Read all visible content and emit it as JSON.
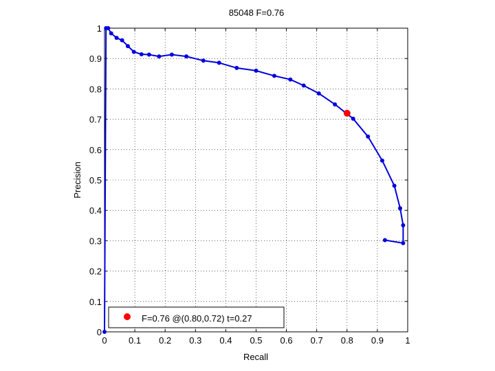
{
  "chart_data": {
    "type": "line",
    "title": "85048 F=0.76",
    "xlabel": "Recall",
    "ylabel": "Precision",
    "xlim": [
      0,
      1
    ],
    "ylim": [
      0,
      1
    ],
    "grid": true,
    "legend_position": "bottom-left",
    "xticks": [
      "0",
      "0.1",
      "0.2",
      "0.3",
      "0.4",
      "0.5",
      "0.6",
      "0.7",
      "0.8",
      "0.9",
      "1"
    ],
    "yticks": [
      "0",
      "0.1",
      "0.2",
      "0.3",
      "0.4",
      "0.5",
      "0.6",
      "0.7",
      "0.8",
      "0.9",
      "1"
    ],
    "series": [
      {
        "color": "#0000dd",
        "points": [
          [
            0.0,
            0.0
          ],
          [
            0.005,
            1.0
          ],
          [
            0.012,
            1.0
          ],
          [
            0.022,
            0.983
          ],
          [
            0.04,
            0.968
          ],
          [
            0.058,
            0.96
          ],
          [
            0.077,
            0.941
          ],
          [
            0.097,
            0.922
          ],
          [
            0.122,
            0.914
          ],
          [
            0.147,
            0.913
          ],
          [
            0.18,
            0.907
          ],
          [
            0.222,
            0.913
          ],
          [
            0.27,
            0.907
          ],
          [
            0.326,
            0.893
          ],
          [
            0.378,
            0.886
          ],
          [
            0.436,
            0.869
          ],
          [
            0.5,
            0.86
          ],
          [
            0.56,
            0.843
          ],
          [
            0.613,
            0.831
          ],
          [
            0.657,
            0.811
          ],
          [
            0.707,
            0.785
          ],
          [
            0.76,
            0.749
          ],
          [
            0.82,
            0.702
          ],
          [
            0.869,
            0.643
          ],
          [
            0.916,
            0.564
          ],
          [
            0.956,
            0.481
          ],
          [
            0.975,
            0.407
          ],
          [
            0.985,
            0.351
          ],
          [
            0.985,
            0.292
          ],
          [
            0.925,
            0.302
          ]
        ]
      }
    ],
    "marker": {
      "label": "F=0.76 @(0.80,0.72) t=0.27",
      "recall": 0.8,
      "precision": 0.72,
      "color": "#ff0000"
    }
  }
}
